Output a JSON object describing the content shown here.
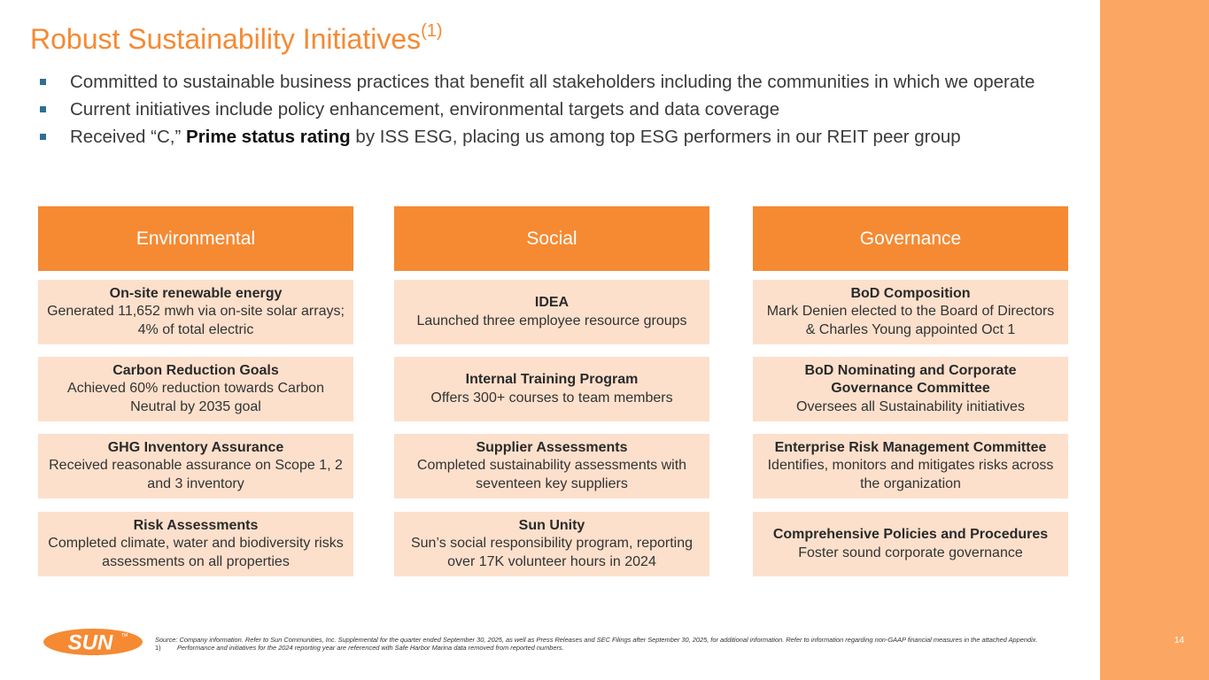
{
  "title": {
    "text": "Robust Sustainability Initiatives",
    "sup": "(1)"
  },
  "bullets": [
    {
      "text": "Committed to sustainable business practices that benefit all stakeholders including the communities in which we operate"
    },
    {
      "text_before": "Received “C,” ",
      "bold": "Prime status rating",
      "text_after": " by ISS ESG, placing us among top ESG performers in our REIT peer group"
    },
    {
      "text": "Current initiatives include policy enhancement, environmental targets and data coverage"
    }
  ],
  "columns": {
    "environmental": {
      "header": "Environmental",
      "cards": [
        {
          "heading": "On-site renewable energy",
          "body": "Generated 11,652 mwh via on-site solar arrays; 4% of total electric"
        },
        {
          "heading": "Carbon Reduction Goals",
          "body": "Achieved 60% reduction towards Carbon Neutral by 2035 goal"
        },
        {
          "heading": "GHG Inventory Assurance",
          "body": "Received reasonable assurance on Scope 1, 2 and 3 inventory"
        },
        {
          "heading": "Risk Assessments",
          "body": "Completed climate, water and biodiversity risks assessments on all properties"
        }
      ]
    },
    "social": {
      "header": "Social",
      "cards": [
        {
          "heading": "IDEA",
          "body": "Launched three employee resource groups"
        },
        {
          "heading": "Internal Training Program",
          "body": "Offers 300+ courses to team members"
        },
        {
          "heading": "Supplier Assessments",
          "body": "Completed sustainability assessments with seventeen key suppliers"
        },
        {
          "heading": "Sun Unity",
          "body": "Sun’s social responsibility program, reporting over 17K volunteer hours in 2024"
        }
      ]
    },
    "governance": {
      "header": "Governance",
      "cards": [
        {
          "heading": "BoD Composition",
          "body": "Mark Denien elected to the Board of Directors & Charles Young appointed Oct 1"
        },
        {
          "heading": "BoD Nominating and Corporate Governance Committee",
          "body": "Oversees all Sustainability initiatives"
        },
        {
          "heading": "Enterprise Risk Management Committee",
          "body": "Identifies, monitors and mitigates risks across the organization"
        },
        {
          "heading": "Comprehensive Policies and Procedures",
          "body": "Foster sound corporate governance"
        }
      ]
    }
  },
  "footnote": {
    "source": "Source: Company information.  Refer to Sun Communities, Inc. Supplemental for the quarter ended September 30, 2025, as well as Press Releases and SEC Filings after September 30, 2025, for additional information. Refer to information regarding non-GAAP financial measures in the attached Appendix.",
    "note_number": "1)",
    "note_text": "Performance and initiatives for the 2024 reporting year are referenced with Safe Harbor Marina data removed from reported numbers."
  },
  "logo": {
    "text": "SUN",
    "tm": "TM"
  },
  "page_number": "14",
  "colors": {
    "accent": "#f58a33",
    "side_strip": "#fba763",
    "card_bg": "#fce0cc",
    "bullet": "#2f6f94"
  }
}
